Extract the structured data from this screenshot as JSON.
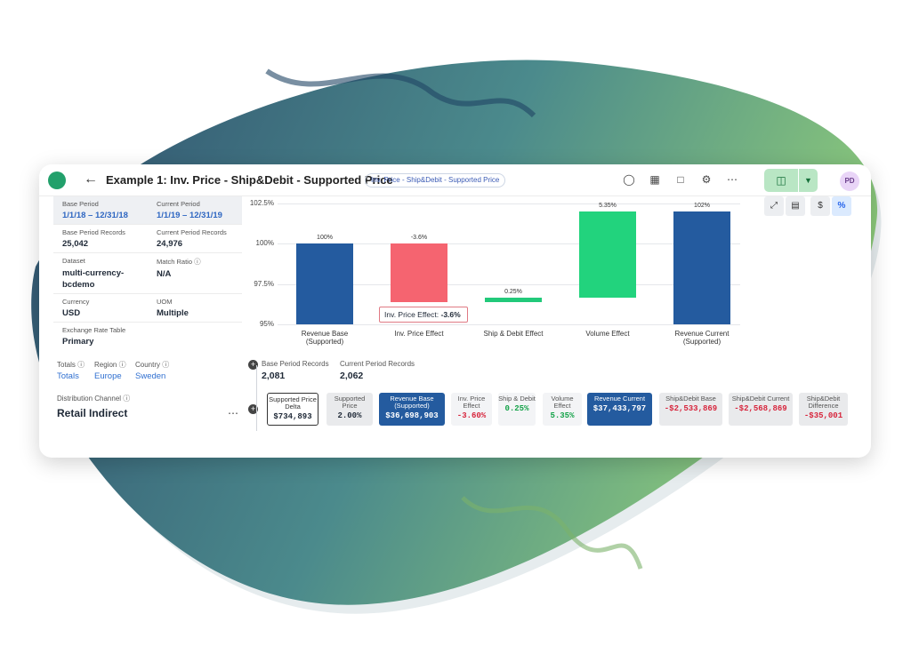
{
  "header": {
    "title": "Example 1: Inv. Price - Ship&Debit - Supported Price",
    "pill": "Inv. Price - Ship&Debit - Supported Price",
    "avatar": "PD"
  },
  "left_panel": {
    "rows": [
      [
        {
          "label": "Base Period",
          "value": "1/1/18 – 12/31/18"
        },
        {
          "label": "Current Period",
          "value": "1/1/19 – 12/31/19"
        }
      ],
      [
        {
          "label": "Base Period Records",
          "value": "25,042"
        },
        {
          "label": "Current Period Records",
          "value": "24,976"
        }
      ],
      [
        {
          "label": "Dataset",
          "value": "multi-currency-bcdemo"
        },
        {
          "label": "Match Ratio",
          "value": "N/A"
        }
      ],
      [
        {
          "label": "Currency",
          "value": "USD"
        },
        {
          "label": "UOM",
          "value": "Multiple"
        }
      ],
      [
        {
          "label": "Exchange Rate Table",
          "value": "Primary"
        }
      ]
    ],
    "filters": [
      {
        "label": "Totals",
        "value": "Totals"
      },
      {
        "label": "Region",
        "value": "Europe"
      },
      {
        "label": "Country",
        "value": "Sweden"
      }
    ],
    "distribution_channel_label": "Distribution Channel",
    "distribution_channel_value": "Retail Indirect"
  },
  "chart_data": {
    "type": "bar",
    "subtype": "waterfall",
    "categories": [
      "Revenue Base (Supported)",
      "Inv. Price Effect",
      "Ship & Debit Effect",
      "Volume Effect",
      "Revenue Current (Supported)"
    ],
    "values": [
      100,
      -3.6,
      0.25,
      5.35,
      102
    ],
    "data_labels": [
      "100%",
      "-3.6%",
      "0.25%",
      "5.35%",
      "102%"
    ],
    "colors": [
      "#245b9f",
      "#f56470",
      "#22c97a",
      "#22d37d",
      "#245b9f"
    ],
    "y_ticks": [
      "102.5%",
      "100%",
      "97.5%",
      "95%"
    ],
    "ylim": [
      95,
      102.5
    ],
    "tooltip": {
      "label": "Inv. Price Effect:",
      "value": "-3.6%"
    }
  },
  "records": {
    "base_label": "Base Period Records",
    "base_value": "2,081",
    "current_label": "Current Period Records",
    "current_value": "2,062"
  },
  "chips": [
    {
      "name": "Supported Price Delta",
      "value": "$734,893"
    },
    {
      "name": "Supported Price",
      "value": "2.00%"
    },
    {
      "name": "Revenue Base (Supported)",
      "value": "$36,698,903"
    },
    {
      "name": "Inv. Price Effect",
      "value": "-3.60%"
    },
    {
      "name": "Ship & Debit",
      "value": "0.25%"
    },
    {
      "name": "Volume Effect",
      "value": "5.35%"
    },
    {
      "name": "Revenue Current",
      "value": "$37,433,797"
    },
    {
      "name": "Ship&Debit Base",
      "value": "-$2,533,869"
    },
    {
      "name": "Ship&Debit Current",
      "value": "-$2,568,869"
    },
    {
      "name": "Ship&Debit Difference",
      "value": "-$35,001"
    }
  ],
  "tools": {
    "dollar": "$",
    "percent": "%"
  },
  "colors": {
    "accent": "#245b9f",
    "negative": "#d7263d",
    "positive": "#16a34a"
  }
}
